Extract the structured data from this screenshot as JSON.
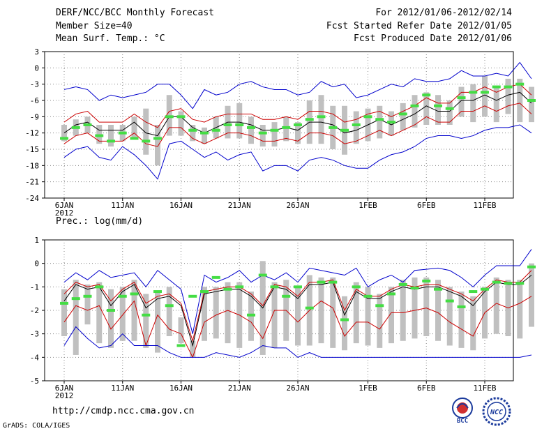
{
  "header": {
    "title": "DERF/NCC/BCC Monthly Forecast",
    "member_size": "Member Size=40",
    "variable_label": "Mean Surf. Temp.: °C",
    "period": "For 2012/01/06-2012/02/14",
    "fcst_started": "Fcst Started Refer Date 2012/01/05",
    "fcst_produced": "Fcst Produced Date 2012/01/06"
  },
  "footer": {
    "url": "http://cmdp.ncc.cma.gov.cn",
    "grads": "GrADS: COLA/IGES",
    "logo1": "BCC",
    "logo2": "NCC"
  },
  "colors": {
    "max_min": "#0000cc",
    "mean": "#000000",
    "spread": "#cc0000",
    "obs": "#44dd44",
    "box": "#c0c0c0"
  },
  "chart_data": [
    {
      "type": "line",
      "title": "Mean Surf. Temp.: °C",
      "ylim": [
        -24,
        3
      ],
      "yticks": [
        3,
        0,
        -3,
        -6,
        -9,
        -12,
        -15,
        -18,
        -21,
        -24
      ],
      "xticks": [
        {
          "day": 0,
          "label": "6JAN"
        },
        {
          "day": 5,
          "label": "11JAN"
        },
        {
          "day": 10,
          "label": "16JAN"
        },
        {
          "day": 15,
          "label": "21JAN"
        },
        {
          "day": 20,
          "label": "26JAN"
        },
        {
          "day": 26,
          "label": "1FEB"
        },
        {
          "day": 31,
          "label": "6FEB"
        },
        {
          "day": 36,
          "label": "11FEB"
        }
      ],
      "year_label": "2012",
      "grid": true,
      "series": [
        {
          "name": "max",
          "values": [
            -4,
            -3.5,
            -4,
            -6,
            -5,
            -5.5,
            -5,
            -4.5,
            -3,
            -3,
            -5,
            -7.5,
            -4,
            -5,
            -4.5,
            -3,
            -2.5,
            -3.5,
            -4,
            -4,
            -5,
            -4.5,
            -2.5,
            -3.5,
            -3,
            -5.5,
            -5,
            -4,
            -3,
            -3.5,
            -2,
            -2.5,
            -2.5,
            -2,
            -0.5,
            -1.5,
            -1.5,
            -1,
            -1.5,
            1,
            -2
          ]
        },
        {
          "name": "upper",
          "values": [
            -10,
            -8.5,
            -8,
            -10,
            -10,
            -10,
            -8.5,
            -10,
            -11,
            -8,
            -7.5,
            -9.5,
            -10,
            -9,
            -8.5,
            -8.5,
            -8.5,
            -9.5,
            -9.5,
            -9,
            -9.5,
            -8,
            -8,
            -8.5,
            -10,
            -9.5,
            -8.5,
            -8,
            -9,
            -8,
            -7,
            -5.5,
            -6.5,
            -6.5,
            -4.5,
            -4.5,
            -3.5,
            -4.5,
            -3.5,
            -3,
            -5
          ]
        },
        {
          "name": "mean",
          "values": [
            -12,
            -10.5,
            -10,
            -11.5,
            -11.5,
            -11.5,
            -10,
            -12,
            -12.5,
            -9,
            -9,
            -11,
            -12,
            -11,
            -10,
            -10,
            -10.5,
            -11.5,
            -11.5,
            -11,
            -11.5,
            -10,
            -10,
            -10.5,
            -12,
            -11.5,
            -10.5,
            -9.5,
            -10.5,
            -9.5,
            -8.5,
            -7,
            -8,
            -8,
            -6,
            -6,
            -5,
            -6,
            -5,
            -4.5,
            -6.5
          ]
        },
        {
          "name": "lower",
          "values": [
            -14,
            -12.5,
            -12,
            -13.5,
            -13.5,
            -13.5,
            -12,
            -14,
            -14.5,
            -11,
            -11,
            -13,
            -14,
            -13,
            -12,
            -12,
            -12.5,
            -13.5,
            -13.5,
            -13,
            -13.5,
            -12,
            -12,
            -12.5,
            -14,
            -13.5,
            -12.5,
            -11.5,
            -12.5,
            -11.5,
            -10.5,
            -9,
            -10,
            -10,
            -8,
            -8,
            -7,
            -8,
            -7,
            -6.5,
            -8.5
          ]
        },
        {
          "name": "min",
          "values": [
            -16.5,
            -15,
            -14.5,
            -16.5,
            -17,
            -14.5,
            -16,
            -18,
            -20.5,
            -14,
            -13.5,
            -15,
            -16.5,
            -15.5,
            -17,
            -16,
            -15.5,
            -19,
            -18,
            -18,
            -19,
            -17,
            -16.5,
            -17,
            -18,
            -18.5,
            -18.5,
            -17,
            -16,
            -15.5,
            -14.5,
            -13,
            -12.5,
            -12.5,
            -13,
            -12.5,
            -11.5,
            -11,
            -11,
            -10.5,
            -12
          ]
        },
        {
          "name": "obs",
          "values": [
            -13,
            -11,
            -10.5,
            -12.5,
            -13.5,
            -12,
            -13,
            -13.5,
            -13,
            -9,
            -9,
            -11.5,
            -12,
            -11.5,
            -10.5,
            -10.5,
            -11,
            -12,
            -11.5,
            -11,
            -10.5,
            -9.5,
            -9,
            -11,
            -11.5,
            -10.5,
            -9,
            -9.5,
            -10,
            -8.5,
            -7,
            -5,
            -7,
            -7.5,
            -5.5,
            -4.5,
            -4.5,
            -3.5,
            -3.5,
            -3,
            -6
          ]
        }
      ],
      "boxes": [
        {
          "hi": [
            -10.5,
            -9.5,
            -9,
            -10.5,
            -10.5,
            -10.5,
            -9,
            -7.5,
            -10.5,
            -5,
            -8,
            -10.5,
            -11,
            -9,
            -7,
            -6.5,
            -9,
            -10.5,
            -10,
            -9,
            -10,
            -6,
            -5,
            -7,
            -7,
            -8,
            -7.5,
            -7,
            -8,
            -6.5,
            -5,
            -4.5,
            -5,
            -6,
            -3.5,
            -3,
            -1.5,
            -3.5,
            -2,
            -2,
            -3.5
          ]
        },
        {
          "lo": [
            -13.5,
            -12.5,
            -12,
            -14,
            -14.5,
            -13.5,
            -13,
            -16,
            -18,
            -12.5,
            -12.5,
            -13.5,
            -14,
            -13,
            -13,
            -13,
            -14,
            -14.5,
            -14.5,
            -13.5,
            -14,
            -14,
            -14,
            -15,
            -16,
            -14,
            -13.5,
            -13,
            -12.5,
            -11.5,
            -11,
            -10.5,
            -10.5,
            -10.5,
            -9,
            -10,
            -9,
            -10,
            -8.5,
            -10,
            -10
          ]
        }
      ]
    },
    {
      "type": "line",
      "title": "Prec.: log(mm/d)",
      "ylim": [
        -5,
        1
      ],
      "yticks": [
        1,
        0,
        -1,
        -2,
        -3,
        -4,
        -5
      ],
      "xticks": [
        {
          "day": 0,
          "label": "6JAN"
        },
        {
          "day": 5,
          "label": "11JAN"
        },
        {
          "day": 10,
          "label": "16JAN"
        },
        {
          "day": 15,
          "label": "21JAN"
        },
        {
          "day": 20,
          "label": "26JAN"
        },
        {
          "day": 26,
          "label": "1FEB"
        },
        {
          "day": 31,
          "label": "6FEB"
        },
        {
          "day": 36,
          "label": "11FEB"
        }
      ],
      "year_label": "2012",
      "grid": true,
      "series": [
        {
          "name": "max",
          "values": [
            -0.8,
            -0.4,
            -0.7,
            -0.3,
            -0.6,
            -0.5,
            -0.4,
            -1,
            -0.3,
            -0.7,
            -1.1,
            -3,
            -0.5,
            -0.8,
            -0.6,
            -0.3,
            -0.8,
            -0.5,
            -0.7,
            -0.4,
            -0.8,
            -0.2,
            -0.3,
            -0.4,
            -0.5,
            -0.2,
            -1,
            -0.7,
            -0.5,
            -0.8,
            -0.3,
            -0.25,
            -0.2,
            -0.3,
            -0.6,
            -1,
            -0.5,
            -0.1,
            -0.1,
            -0.1,
            0.6
          ]
        },
        {
          "name": "upper",
          "values": [
            -1.3,
            -0.8,
            -1,
            -0.9,
            -1.6,
            -1.1,
            -0.8,
            -1.7,
            -1.4,
            -1.3,
            -1.7,
            -3.3,
            -1.2,
            -1.1,
            -1,
            -1,
            -1.3,
            -1.8,
            -0.9,
            -1,
            -1.4,
            -0.8,
            -0.8,
            -0.7,
            -2,
            -1.1,
            -1.4,
            -1.4,
            -1.1,
            -0.9,
            -1,
            -0.9,
            -0.9,
            -1.1,
            -1.3,
            -1.6,
            -1.1,
            -0.7,
            -0.8,
            -0.8,
            -0.3
          ]
        },
        {
          "name": "mean",
          "values": [
            -1.6,
            -0.9,
            -1.1,
            -1,
            -1.8,
            -1.2,
            -0.9,
            -1.9,
            -1.5,
            -1.4,
            -1.8,
            -3.5,
            -1.3,
            -1.2,
            -1.1,
            -1.1,
            -1.4,
            -1.9,
            -1,
            -1.1,
            -1.5,
            -0.9,
            -0.9,
            -0.8,
            -2.2,
            -1.2,
            -1.5,
            -1.5,
            -1.2,
            -1,
            -1.1,
            -1,
            -1,
            -1.2,
            -1.4,
            -1.8,
            -1.2,
            -0.8,
            -0.9,
            -0.9,
            -0.5
          ]
        },
        {
          "name": "lower",
          "values": [
            -2.5,
            -1.8,
            -2,
            -1.8,
            -2.8,
            -2.2,
            -1.6,
            -3.5,
            -2.2,
            -2.8,
            -3,
            -4,
            -2.5,
            -2.2,
            -2,
            -2.2,
            -2.5,
            -3.2,
            -2,
            -2,
            -2.5,
            -2,
            -1.6,
            -1.9,
            -3.1,
            -2.5,
            -2.5,
            -2.8,
            -2.1,
            -2.1,
            -2,
            -1.9,
            -2.1,
            -2.5,
            -2.8,
            -3.1,
            -2.1,
            -1.7,
            -1.9,
            -1.7,
            -1.4
          ]
        },
        {
          "name": "min",
          "values": [
            -3.5,
            -2.7,
            -3.2,
            -3.6,
            -3.5,
            -3,
            -3.5,
            -3.5,
            -3.5,
            -3.8,
            -4,
            -4,
            -4,
            -3.8,
            -3.9,
            -4,
            -3.8,
            -3.5,
            -3.6,
            -3.6,
            -4,
            -3.8,
            -4,
            -4,
            -4,
            -4,
            -4,
            -4,
            -4,
            -4,
            -4,
            -4,
            -4,
            -4,
            -4,
            -4,
            -4,
            -4,
            -4,
            -4,
            -3.9
          ]
        },
        {
          "name": "obs",
          "values": [
            -1.7,
            -1.5,
            -1.4,
            -1,
            -2,
            -1.4,
            -1.3,
            -2.2,
            -1.2,
            -1.8,
            -3.5,
            -1.4,
            -1.2,
            -0.6,
            -1.1,
            -1,
            -2.2,
            -0.5,
            -1,
            -1.4,
            -1,
            -1.9,
            -0.8,
            -0.8,
            -2.4,
            -1,
            -1.4,
            -1.8,
            -1.3,
            -0.9,
            -1.05,
            -0.75,
            -1.1,
            -1.6,
            -1.85,
            -1.2,
            -1.1,
            -0.8,
            -0.85,
            -0.85,
            -0.15
          ]
        }
      ],
      "boxes": [
        {
          "hi": [
            -1.1,
            -0.7,
            -0.9,
            -0.8,
            -1.1,
            -1,
            -0.7,
            -1.3,
            -1.2,
            -1,
            -2.3,
            -3.3,
            -1,
            -1,
            -0.8,
            -0.8,
            -1.2,
            0.1,
            -0.8,
            -0.7,
            -1,
            -0.5,
            -0.6,
            -0.6,
            -1.4,
            -0.8,
            -1,
            -1.3,
            -1,
            -0.7,
            -0.6,
            -0.6,
            -0.7,
            -1,
            -1.2,
            -1.4,
            -1,
            -0.6,
            -0.7,
            -0.7,
            0
          ]
        },
        {
          "lo": [
            -3.1,
            -3.9,
            -2.6,
            -3.4,
            -3.6,
            -3.3,
            -3.3,
            -3.6,
            -3.8,
            -3.1,
            -3.4,
            -4,
            -3.3,
            -3.2,
            -3.4,
            -3.6,
            -3.3,
            -3.9,
            -3.6,
            -3.3,
            -3.5,
            -3.5,
            -3.4,
            -3.6,
            -3.7,
            -3.4,
            -3.5,
            -3.6,
            -3.4,
            -3.3,
            -3.2,
            -3.1,
            -3.3,
            -3.5,
            -3.6,
            -3.7,
            -3.2,
            -3,
            -3.1,
            -3.2,
            -2.7
          ]
        }
      ]
    }
  ]
}
